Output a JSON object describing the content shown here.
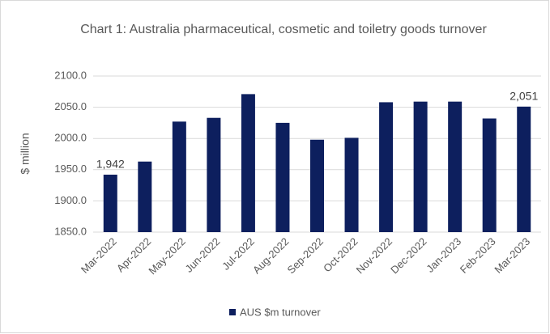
{
  "chart_data": {
    "type": "bar",
    "title": "Chart 1: Australia pharmaceutical, cosmetic and toiletry goods turnover",
    "y_label": "$ million",
    "categories": [
      "Mar-2022",
      "Apr-2022",
      "May-2022",
      "Jun-2022",
      "Jul-2022",
      "Aug-2022",
      "Sep-2022",
      "Oct-2022",
      "Nov-2022",
      "Dec-2022",
      "Jan-2023",
      "Feb-2023",
      "Mar-2023"
    ],
    "series": [
      {
        "name": "AUS $m turnover",
        "color": "#0d1f5e",
        "values": [
          1942,
          1963,
          2027,
          2033,
          2071,
          2025,
          1998,
          2001,
          2058,
          2059,
          2059,
          2032,
          2051
        ],
        "value_labels": [
          "1,942",
          null,
          null,
          null,
          null,
          null,
          null,
          null,
          null,
          null,
          null,
          null,
          "2,051"
        ]
      }
    ],
    "ylim": [
      1850,
      2100
    ],
    "yticks": [
      {
        "value": 1850,
        "label": "1850.0"
      },
      {
        "value": 1900,
        "label": "1900.0"
      },
      {
        "value": 1950,
        "label": "1950.0"
      },
      {
        "value": 2000,
        "label": "2000.0"
      },
      {
        "value": 2050,
        "label": "2050.0"
      },
      {
        "value": 2100,
        "label": "2100.0"
      }
    ],
    "grid": true,
    "legend": "bottom"
  }
}
